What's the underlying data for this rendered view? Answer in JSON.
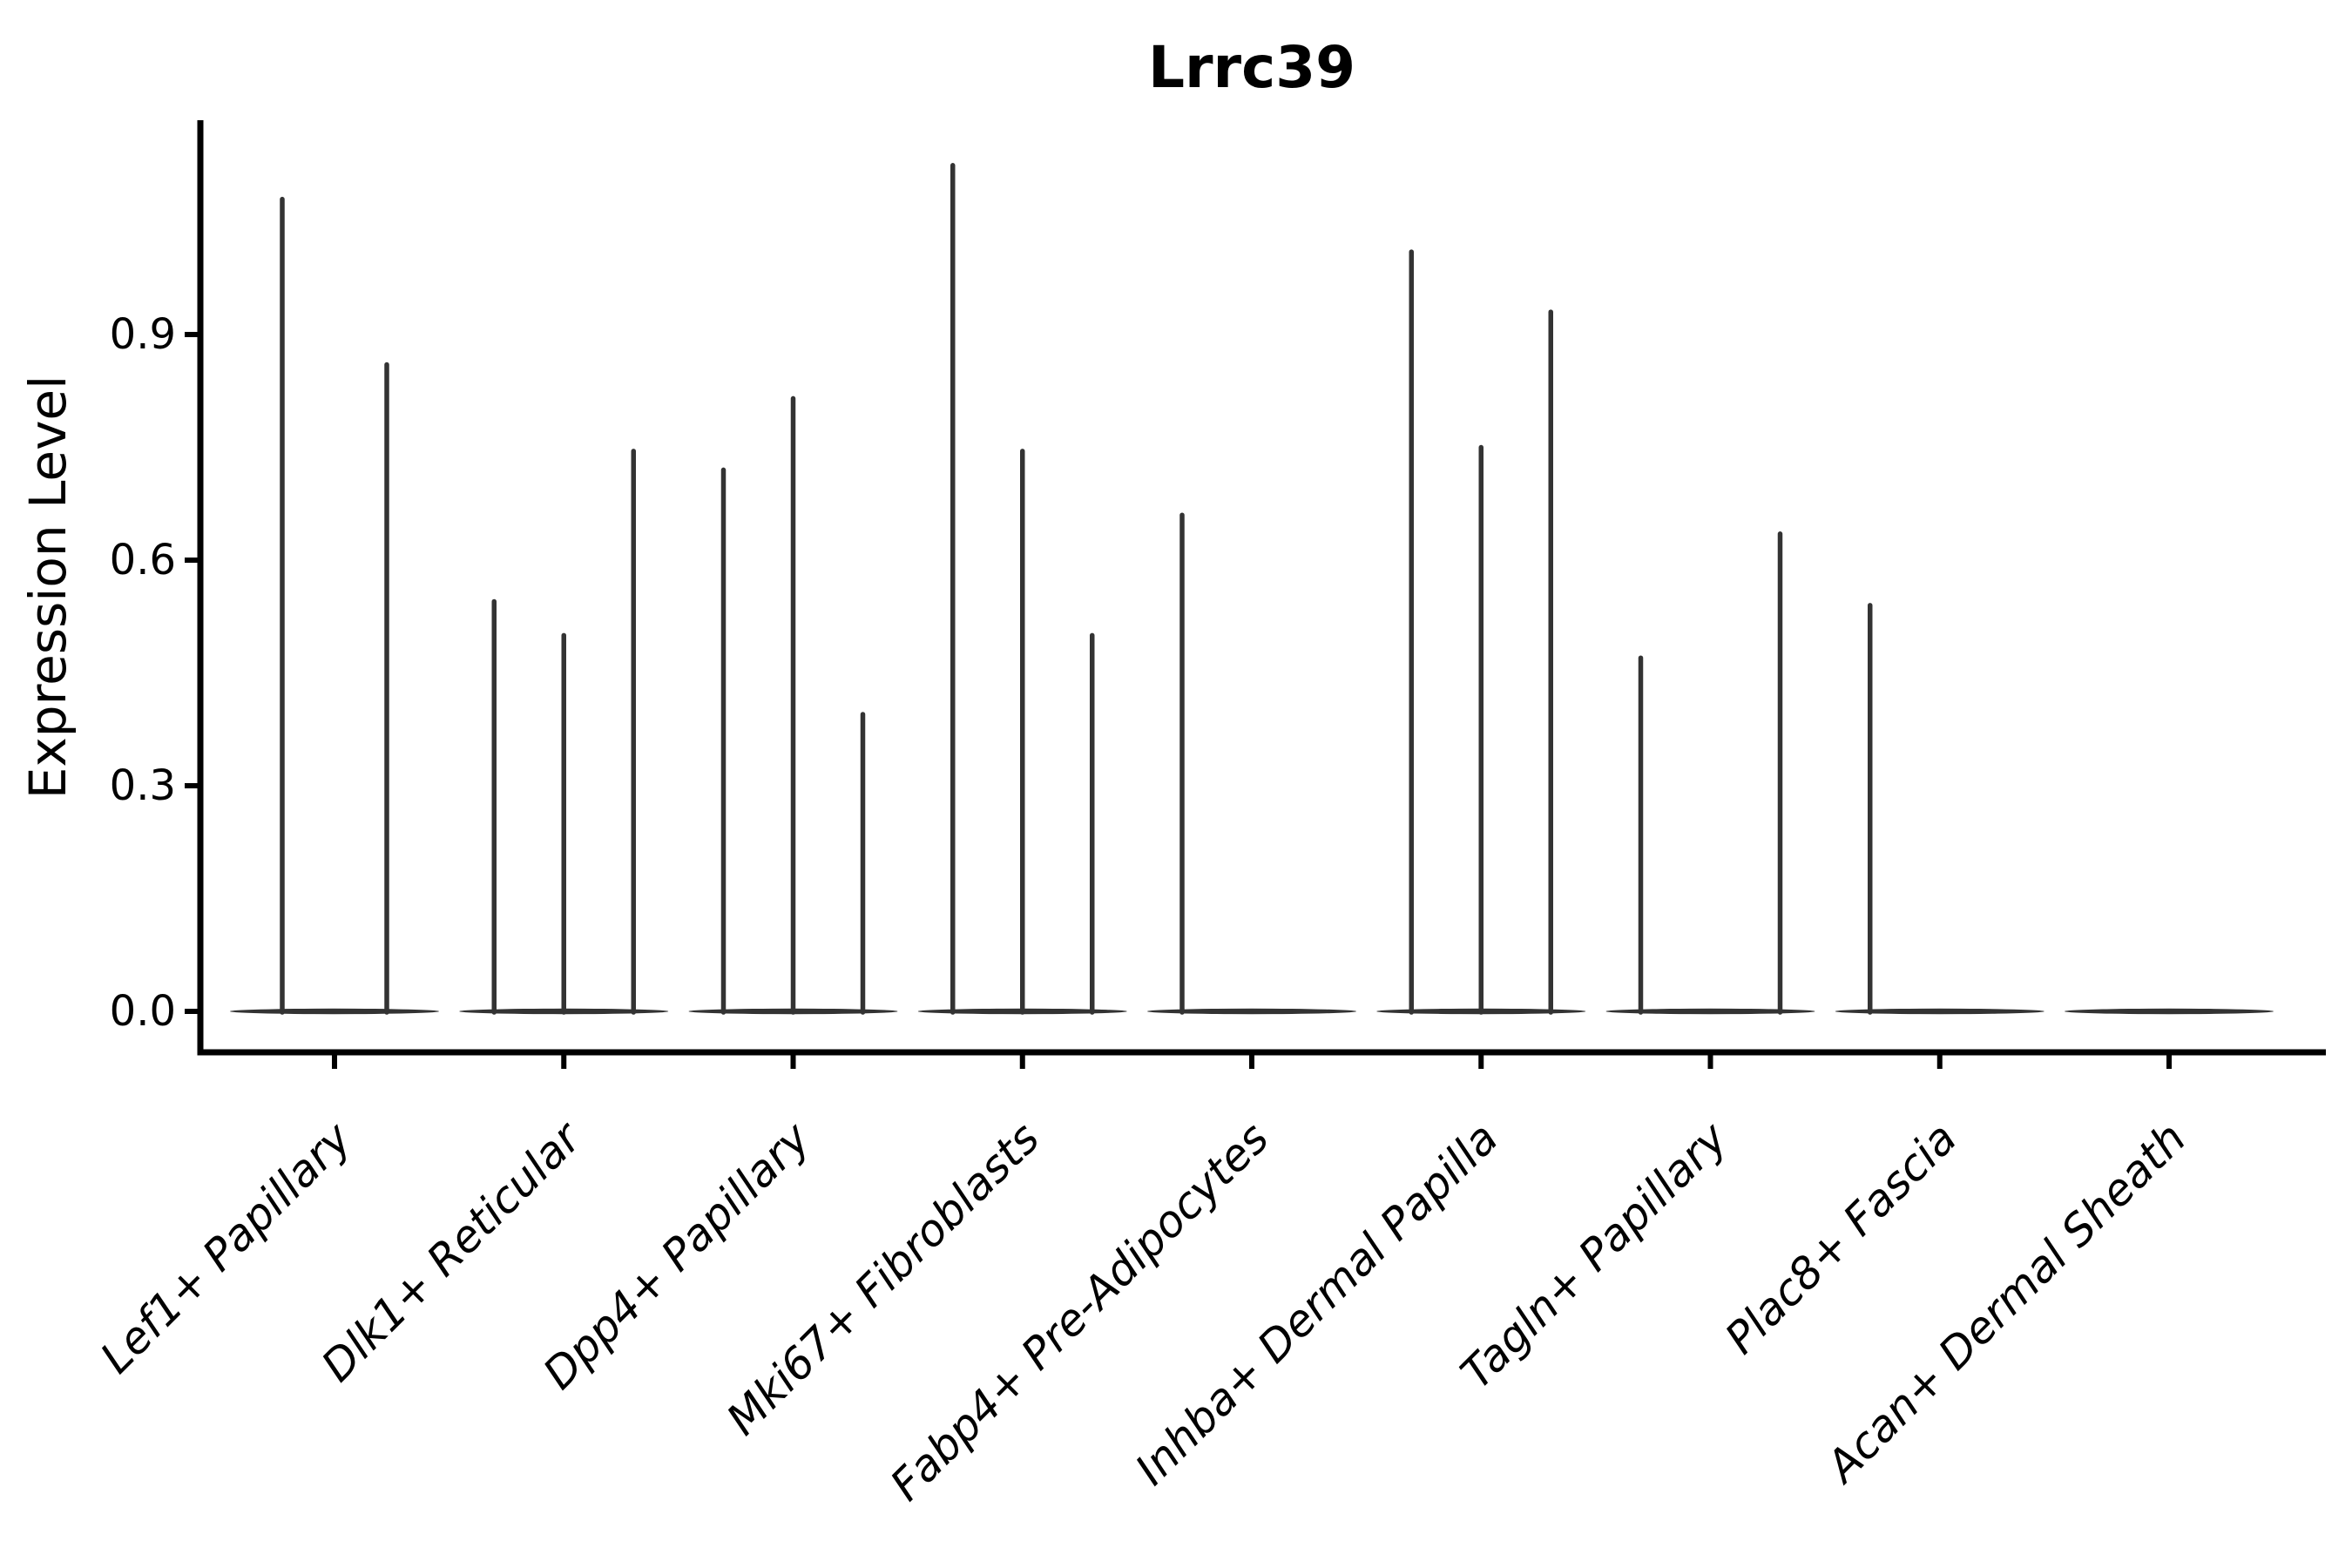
{
  "title": "Lrrc39",
  "axis": {
    "ylabel": "Expression Level",
    "ytick_labels": [
      "0.0",
      "0.3",
      "0.6",
      "0.9"
    ]
  },
  "colors": {
    "axis": "#000000",
    "text": "#000000",
    "violin": "#333333"
  },
  "chart_data": {
    "type": "violin",
    "title": "Lrrc39",
    "xlabel": "",
    "ylabel": "Expression Level",
    "yticks": [
      0.0,
      0.3,
      0.6,
      0.9
    ],
    "ylim": [
      0,
      1.185
    ],
    "grid": false,
    "legend": "none",
    "x_label_angle_deg": 45,
    "note": "Seurat-style violin plot; expression is near zero for most cells so each violin collapses to a flat base at 0 with a thin density spike up to the max expression value",
    "categories": [
      "Lef1+ Papillary",
      "Dlk1+ Reticular",
      "Dpp4+ Papillary",
      "Mki67+ Fibroblasts",
      "Fabp4+ Pre-Adipocytes",
      "Inhba+ Dermal Papilla",
      "Tagln+ Papillary",
      "Plac8+ Fascia",
      "Acan+ Dermal Sheath"
    ],
    "groups": [
      {
        "category": "Lef1+ Papillary",
        "spike_max_values": [
          1.08,
          0.86
        ]
      },
      {
        "category": "Dlk1+ Reticular",
        "spike_max_values": [
          0.545,
          0.5,
          0.745
        ]
      },
      {
        "category": "Dpp4+ Papillary",
        "spike_max_values": [
          0.72,
          0.815,
          0.395
        ]
      },
      {
        "category": "Mki67+ Fibroblasts",
        "spike_max_values": [
          1.125,
          0.745,
          0.5
        ]
      },
      {
        "category": "Fabp4+ Pre-Adipocytes",
        "spike_max_values": [
          0.66,
          0,
          0
        ]
      },
      {
        "category": "Inhba+ Dermal Papilla",
        "spike_max_values": [
          1.01,
          0.75,
          0.93
        ]
      },
      {
        "category": "Tagln+ Papillary",
        "spike_max_values": [
          0.47,
          0,
          0.635
        ]
      },
      {
        "category": "Plac8+ Fascia",
        "spike_max_values": [
          0.54,
          0,
          0
        ]
      },
      {
        "category": "Acan+ Dermal Sheath",
        "spike_max_values": [
          0,
          0,
          0
        ]
      }
    ]
  }
}
